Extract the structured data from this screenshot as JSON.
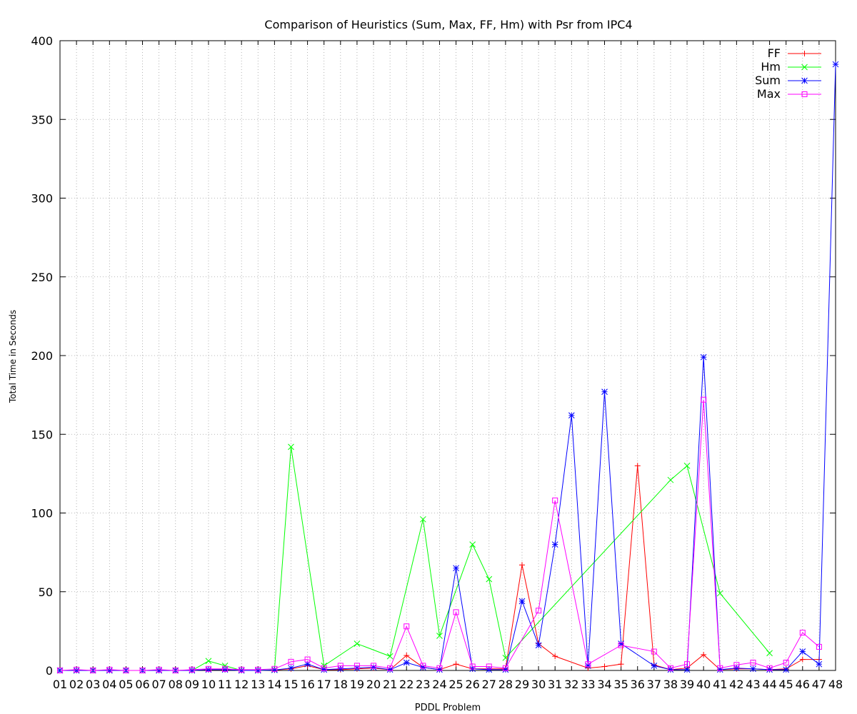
{
  "chart_data": {
    "type": "line",
    "title": "Comparison of Heuristics (Sum, Max, FF, Hm) with Psr from IPC4",
    "xlabel": "PDDL Problem",
    "ylabel": "Total Time in Seconds",
    "ylim": [
      0,
      400
    ],
    "yticks": [
      "0",
      "50",
      "100",
      "150",
      "200",
      "250",
      "300",
      "350",
      "400"
    ],
    "categories": [
      "01",
      "02",
      "03",
      "04",
      "05",
      "06",
      "07",
      "08",
      "09",
      "10",
      "11",
      "12",
      "13",
      "14",
      "15",
      "16",
      "17",
      "18",
      "19",
      "20",
      "21",
      "22",
      "23",
      "24",
      "25",
      "26",
      "27",
      "28",
      "29",
      "30",
      "31",
      "32",
      "33",
      "34",
      "35",
      "36",
      "37",
      "38",
      "39",
      "40",
      "41",
      "42",
      "43",
      "44",
      "45",
      "46",
      "47",
      "48"
    ],
    "grid": true,
    "legend_position": "top-right",
    "series": [
      {
        "name": "FF",
        "color": "#ff0000",
        "marker": "plus",
        "points": [
          [
            1,
            0
          ],
          [
            2,
            0
          ],
          [
            3,
            0
          ],
          [
            4,
            0
          ],
          [
            5,
            0
          ],
          [
            6,
            0
          ],
          [
            7,
            0
          ],
          [
            8,
            0
          ],
          [
            9,
            0
          ],
          [
            10,
            0.5
          ],
          [
            11,
            0.5
          ],
          [
            12,
            0
          ],
          [
            13,
            0
          ],
          [
            14,
            0.3
          ],
          [
            15,
            1
          ],
          [
            16,
            3
          ],
          [
            17,
            0.5
          ],
          [
            18,
            0.5
          ],
          [
            19,
            1
          ],
          [
            20,
            1.5
          ],
          [
            21,
            0.5
          ],
          [
            22,
            9.5
          ],
          [
            23,
            2
          ],
          [
            24,
            0.5
          ],
          [
            25,
            4
          ],
          [
            26,
            1
          ],
          [
            27,
            1
          ],
          [
            28,
            1
          ],
          [
            29,
            67
          ],
          [
            30,
            17
          ],
          [
            31,
            9
          ],
          [
            33,
            1.5
          ],
          [
            34,
            2.5
          ],
          [
            35,
            4
          ],
          [
            36,
            130
          ],
          [
            37,
            3.5
          ],
          [
            38,
            0.5
          ],
          [
            39,
            1.5
          ],
          [
            40,
            10
          ],
          [
            41,
            0.5
          ],
          [
            42,
            1
          ],
          [
            43,
            1
          ],
          [
            44,
            0.5
          ],
          [
            45,
            1
          ],
          [
            46,
            7
          ],
          [
            47,
            7
          ]
        ]
      },
      {
        "name": "Hm",
        "color": "#00ff00",
        "marker": "cross",
        "points": [
          [
            1,
            0
          ],
          [
            2,
            0
          ],
          [
            3,
            0
          ],
          [
            4,
            0
          ],
          [
            5,
            0
          ],
          [
            6,
            0
          ],
          [
            7,
            0
          ],
          [
            8,
            0
          ],
          [
            9,
            0
          ],
          [
            10,
            6
          ],
          [
            11,
            3
          ],
          [
            12,
            0
          ],
          [
            13,
            0
          ],
          [
            14,
            0.5
          ],
          [
            15,
            142
          ],
          [
            17,
            3
          ],
          [
            19,
            17
          ],
          [
            21,
            9
          ],
          [
            23,
            96
          ],
          [
            24,
            22
          ],
          [
            26,
            80
          ],
          [
            27,
            58
          ],
          [
            28,
            8
          ],
          [
            38,
            121
          ],
          [
            39,
            130
          ],
          [
            41,
            49
          ],
          [
            44,
            11
          ]
        ]
      },
      {
        "name": "Sum",
        "color": "#0000ff",
        "marker": "star",
        "points": [
          [
            1,
            0
          ],
          [
            2,
            0
          ],
          [
            3,
            0
          ],
          [
            4,
            0
          ],
          [
            5,
            0
          ],
          [
            6,
            0
          ],
          [
            7,
            0
          ],
          [
            8,
            0
          ],
          [
            9,
            0
          ],
          [
            10,
            0.5
          ],
          [
            11,
            0.5
          ],
          [
            12,
            0
          ],
          [
            13,
            0
          ],
          [
            14,
            0.3
          ],
          [
            15,
            1.5
          ],
          [
            16,
            4
          ],
          [
            17,
            0.5
          ],
          [
            18,
            1
          ],
          [
            19,
            1.5
          ],
          [
            20,
            2
          ],
          [
            21,
            0.5
          ],
          [
            22,
            5
          ],
          [
            23,
            2
          ],
          [
            24,
            0.5
          ],
          [
            25,
            65
          ],
          [
            26,
            1
          ],
          [
            27,
            0.5
          ],
          [
            28,
            0.5
          ],
          [
            29,
            44
          ],
          [
            30,
            16
          ],
          [
            31,
            80
          ],
          [
            32,
            162
          ],
          [
            33,
            3
          ],
          [
            34,
            177
          ],
          [
            35,
            17
          ],
          [
            37,
            3
          ],
          [
            38,
            0.5
          ],
          [
            39,
            0.5
          ],
          [
            40,
            199
          ],
          [
            41,
            0.5
          ],
          [
            42,
            1.5
          ],
          [
            43,
            1
          ],
          [
            44,
            0.5
          ],
          [
            45,
            0.5
          ],
          [
            46,
            12
          ],
          [
            47,
            4
          ],
          [
            48,
            385
          ]
        ]
      },
      {
        "name": "Max",
        "color": "#ff00ff",
        "marker": "square",
        "points": [
          [
            1,
            0
          ],
          [
            2,
            0.5
          ],
          [
            3,
            0
          ],
          [
            4,
            0.5
          ],
          [
            5,
            0
          ],
          [
            6,
            0
          ],
          [
            7,
            0.5
          ],
          [
            8,
            0
          ],
          [
            9,
            0.5
          ],
          [
            10,
            1
          ],
          [
            11,
            1
          ],
          [
            12,
            0.5
          ],
          [
            13,
            0.5
          ],
          [
            14,
            1
          ],
          [
            15,
            5.5
          ],
          [
            16,
            7
          ],
          [
            17,
            1.5
          ],
          [
            18,
            3
          ],
          [
            19,
            3
          ],
          [
            20,
            3
          ],
          [
            21,
            1.5
          ],
          [
            22,
            28
          ],
          [
            23,
            3
          ],
          [
            24,
            1.5
          ],
          [
            25,
            37
          ],
          [
            26,
            2.5
          ],
          [
            27,
            2.5
          ],
          [
            28,
            1.5
          ],
          [
            30,
            38
          ],
          [
            31,
            108
          ],
          [
            33,
            4
          ],
          [
            35,
            16
          ],
          [
            37,
            12
          ],
          [
            38,
            1.5
          ],
          [
            39,
            4
          ],
          [
            40,
            172
          ],
          [
            41,
            1.5
          ],
          [
            42,
            3.5
          ],
          [
            43,
            5
          ],
          [
            44,
            1.5
          ],
          [
            45,
            5
          ],
          [
            46,
            24
          ],
          [
            47,
            15
          ]
        ]
      }
    ]
  }
}
